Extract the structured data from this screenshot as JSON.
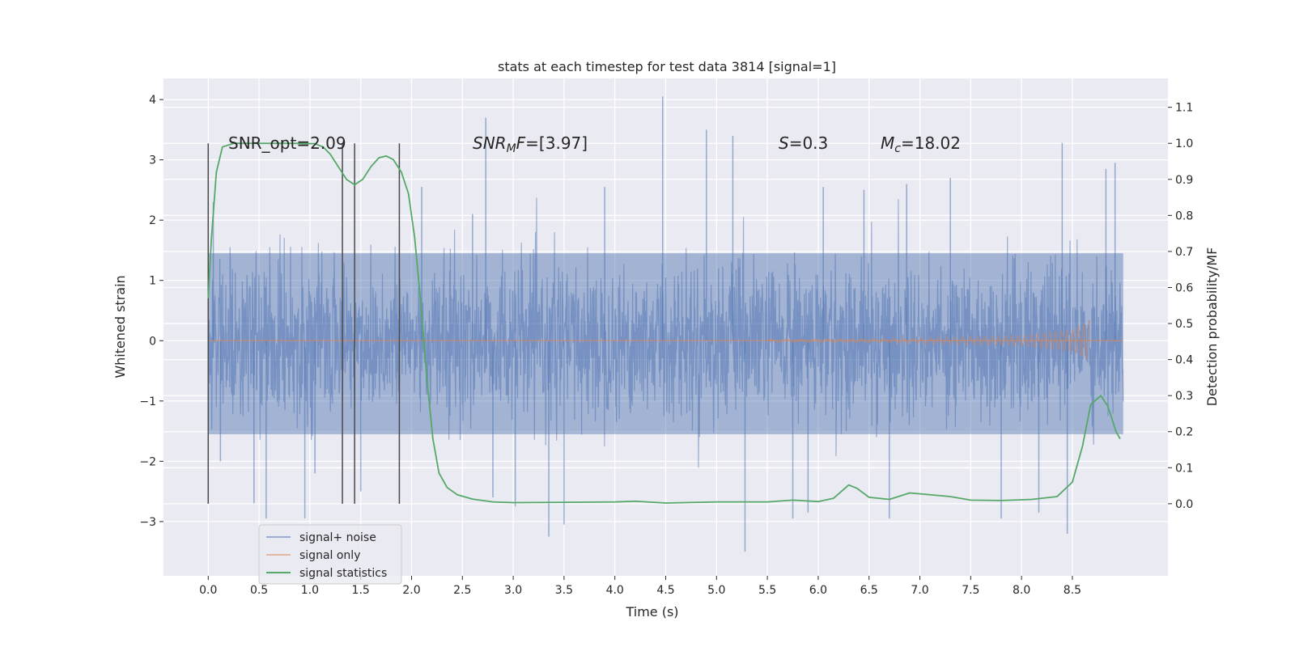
{
  "chart_data": {
    "type": "line",
    "title": "stats at each timestep for test data 3814 [signal=1]",
    "xlabel": "Time (s)",
    "ylabel": "Whitened strain",
    "ylabel_right": "Detection probability/MF",
    "xlim": [
      -0.44,
      9.44
    ],
    "ylim": [
      -3.9,
      4.35
    ],
    "ylim_right": [
      -0.2,
      1.18
    ],
    "xticks": [
      0.0,
      0.5,
      1.0,
      1.5,
      2.0,
      2.5,
      3.0,
      3.5,
      4.0,
      4.5,
      5.0,
      5.5,
      6.0,
      6.5,
      7.0,
      7.5,
      8.0,
      8.5
    ],
    "xtick_labels": [
      "0.0",
      "0.5",
      "1.0",
      "1.5",
      "2.0",
      "2.5",
      "3.0",
      "3.5",
      "4.0",
      "4.5",
      "5.0",
      "5.5",
      "6.0",
      "6.5",
      "7.0",
      "7.5",
      "8.0",
      "8.5"
    ],
    "yticks": [
      -3,
      -2,
      -1,
      0,
      1,
      2,
      3,
      4
    ],
    "ytick_labels": [
      "−3",
      "−2",
      "−1",
      "0",
      "1",
      "2",
      "3",
      "4"
    ],
    "yticks_right": [
      0.0,
      0.1,
      0.2,
      0.3,
      0.4,
      0.5,
      0.6,
      0.7,
      0.8,
      0.9,
      1.0,
      1.1
    ],
    "ytick_labels_right": [
      "0.0",
      "0.1",
      "0.2",
      "0.3",
      "0.4",
      "0.5",
      "0.6",
      "0.7",
      "0.8",
      "0.9",
      "1.0",
      "1.1"
    ],
    "grid": true,
    "legend_position": "lower-left",
    "annotations": {
      "snr_opt": "SNR_opt=2.09",
      "snr_mf_sym": "SNR",
      "snr_mf_sub": "M",
      "snr_mf_f": "F",
      "snr_mf_val": "=[3.97]",
      "s_sym": "S",
      "s_val": "=0.3",
      "mc_sym": "M",
      "mc_sub": "c",
      "mc_val": "=18.02"
    },
    "vertical_markers": [
      0.0,
      1.32,
      1.44,
      1.88
    ],
    "series": [
      {
        "name": "signal+ noise",
        "color": "#4c72b0",
        "kind": "noise",
        "x_range": [
          0.0,
          9.0
        ],
        "core_range": [
          -1.55,
          1.45
        ],
        "peaks": [
          {
            "x": 0.05,
            "y": 2.3
          },
          {
            "x": 0.12,
            "y": -2.0
          },
          {
            "x": 0.45,
            "y": -2.7
          },
          {
            "x": 0.57,
            "y": -2.95
          },
          {
            "x": 0.95,
            "y": -2.95
          },
          {
            "x": 1.05,
            "y": -2.2
          },
          {
            "x": 1.5,
            "y": -2.5
          },
          {
            "x": 2.1,
            "y": 2.55
          },
          {
            "x": 2.6,
            "y": 2.1
          },
          {
            "x": 2.73,
            "y": 3.7
          },
          {
            "x": 2.8,
            "y": -2.6
          },
          {
            "x": 3.02,
            "y": -2.75
          },
          {
            "x": 3.35,
            "y": -3.25
          },
          {
            "x": 3.5,
            "y": -3.05
          },
          {
            "x": 3.9,
            "y": 2.55
          },
          {
            "x": 4.47,
            "y": 4.05
          },
          {
            "x": 4.9,
            "y": 3.5
          },
          {
            "x": 5.16,
            "y": 3.4
          },
          {
            "x": 5.28,
            "y": -3.5
          },
          {
            "x": 5.75,
            "y": -2.95
          },
          {
            "x": 5.9,
            "y": -2.85
          },
          {
            "x": 6.05,
            "y": 2.55
          },
          {
            "x": 6.45,
            "y": 2.5
          },
          {
            "x": 6.7,
            "y": -2.95
          },
          {
            "x": 6.87,
            "y": 2.6
          },
          {
            "x": 7.3,
            "y": 2.7
          },
          {
            "x": 7.8,
            "y": -2.95
          },
          {
            "x": 8.17,
            "y": -2.85
          },
          {
            "x": 8.4,
            "y": 3.28
          },
          {
            "x": 8.45,
            "y": -3.2
          },
          {
            "x": 8.83,
            "y": 2.85
          },
          {
            "x": 8.92,
            "y": 2.95
          }
        ]
      },
      {
        "name": "signal only",
        "color": "#dd8452",
        "kind": "chirp",
        "x_range": [
          0.0,
          8.67
        ],
        "envelope": [
          {
            "x": 0.0,
            "amp": 0.0
          },
          {
            "x": 4.5,
            "amp": 0.01
          },
          {
            "x": 6.5,
            "amp": 0.03
          },
          {
            "x": 8.0,
            "amp": 0.08
          },
          {
            "x": 8.5,
            "amp": 0.18
          },
          {
            "x": 8.67,
            "amp": 0.33
          }
        ],
        "baseline_x_end": 9.0
      },
      {
        "name": "signal statistics",
        "color": "#55a868",
        "kind": "line",
        "axis": "right",
        "points": [
          [
            0.0,
            0.57
          ],
          [
            0.03,
            0.73
          ],
          [
            0.08,
            0.92
          ],
          [
            0.14,
            0.99
          ],
          [
            0.25,
            1.0
          ],
          [
            0.5,
            1.0
          ],
          [
            0.8,
            1.0
          ],
          [
            1.05,
            0.999
          ],
          [
            1.13,
            0.99
          ],
          [
            1.2,
            0.97
          ],
          [
            1.28,
            0.935
          ],
          [
            1.36,
            0.9
          ],
          [
            1.44,
            0.885
          ],
          [
            1.52,
            0.9
          ],
          [
            1.6,
            0.935
          ],
          [
            1.68,
            0.96
          ],
          [
            1.75,
            0.965
          ],
          [
            1.82,
            0.955
          ],
          [
            1.9,
            0.92
          ],
          [
            1.97,
            0.86
          ],
          [
            2.03,
            0.74
          ],
          [
            2.09,
            0.56
          ],
          [
            2.15,
            0.35
          ],
          [
            2.21,
            0.18
          ],
          [
            2.27,
            0.085
          ],
          [
            2.35,
            0.045
          ],
          [
            2.45,
            0.025
          ],
          [
            2.6,
            0.013
          ],
          [
            2.8,
            0.005
          ],
          [
            3.0,
            0.003
          ],
          [
            3.5,
            0.004
          ],
          [
            4.0,
            0.005
          ],
          [
            4.2,
            0.007
          ],
          [
            4.5,
            0.002
          ],
          [
            5.0,
            0.005
          ],
          [
            5.5,
            0.005
          ],
          [
            5.75,
            0.01
          ],
          [
            6.0,
            0.006
          ],
          [
            6.15,
            0.015
          ],
          [
            6.3,
            0.052
          ],
          [
            6.38,
            0.043
          ],
          [
            6.5,
            0.018
          ],
          [
            6.7,
            0.012
          ],
          [
            6.9,
            0.03
          ],
          [
            7.1,
            0.025
          ],
          [
            7.3,
            0.02
          ],
          [
            7.5,
            0.01
          ],
          [
            7.8,
            0.009
          ],
          [
            8.1,
            0.012
          ],
          [
            8.35,
            0.02
          ],
          [
            8.5,
            0.06
          ],
          [
            8.6,
            0.16
          ],
          [
            8.68,
            0.275
          ],
          [
            8.78,
            0.3
          ],
          [
            8.85,
            0.27
          ],
          [
            8.93,
            0.2
          ],
          [
            8.97,
            0.18
          ]
        ]
      }
    ]
  }
}
